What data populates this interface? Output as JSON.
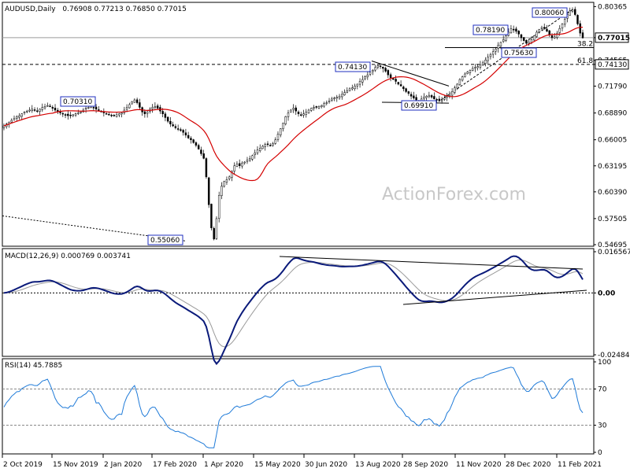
{
  "chart_data": [
    {
      "type": "candlestick",
      "title": "AUDUSD,Daily",
      "ohlc_text": "0.76908 0.77213 0.76850 0.77015",
      "watermark": "ActionForex.com",
      "y_ticks": [
        "0.80365",
        "0.77015",
        "0.74565",
        "0.74130",
        "0.71790",
        "0.68890",
        "0.66005",
        "0.63195",
        "0.60390",
        "0.57505",
        "0.54695"
      ],
      "y_tick_values": [
        0.80365,
        0.77015,
        0.74565,
        0.7413,
        0.7179,
        0.6889,
        0.66005,
        0.63195,
        0.6039,
        0.57505,
        0.54695
      ],
      "ylim": [
        0.54695,
        0.8065
      ],
      "current_price": "0.77015",
      "fib_labels": [
        "38.2",
        "61.8"
      ],
      "annotations": [
        "0.80060",
        "0.78190",
        "0.75630",
        "0.74130",
        "0.70310",
        "0.69910",
        "0.55060"
      ],
      "close": [
        0.675,
        0.677,
        0.679,
        0.681,
        0.683,
        0.685,
        0.686,
        0.688,
        0.69,
        0.691,
        0.692,
        0.693,
        0.692,
        0.691,
        0.693,
        0.695,
        0.696,
        0.697,
        0.696,
        0.694,
        0.692,
        0.69,
        0.689,
        0.688,
        0.687,
        0.686,
        0.686,
        0.687,
        0.688,
        0.689,
        0.69,
        0.692,
        0.694,
        0.695,
        0.696,
        0.695,
        0.693,
        0.692,
        0.69,
        0.689,
        0.688,
        0.687,
        0.686,
        0.686,
        0.687,
        0.688,
        0.689,
        0.692,
        0.695,
        0.698,
        0.701,
        0.703,
        0.7,
        0.695,
        0.69,
        0.688,
        0.69,
        0.693,
        0.695,
        0.696,
        0.694,
        0.691,
        0.688,
        0.684,
        0.68,
        0.677,
        0.675,
        0.673,
        0.672,
        0.67,
        0.668,
        0.665,
        0.662,
        0.66,
        0.657,
        0.654,
        0.65,
        0.645,
        0.64,
        0.62,
        0.59,
        0.565,
        0.553,
        0.575,
        0.6,
        0.61,
        0.615,
        0.617,
        0.62,
        0.626,
        0.632,
        0.634,
        0.632,
        0.635,
        0.636,
        0.638,
        0.64,
        0.643,
        0.646,
        0.649,
        0.651,
        0.653,
        0.655,
        0.655,
        0.654,
        0.656,
        0.66,
        0.666,
        0.672,
        0.678,
        0.685,
        0.689,
        0.692,
        0.694,
        0.691,
        0.688,
        0.687,
        0.688,
        0.69,
        0.692,
        0.694,
        0.695,
        0.695,
        0.696,
        0.697,
        0.699,
        0.7,
        0.702,
        0.704,
        0.705,
        0.706,
        0.707,
        0.709,
        0.711,
        0.713,
        0.715,
        0.716,
        0.718,
        0.72,
        0.723,
        0.725,
        0.728,
        0.73,
        0.733,
        0.735,
        0.738,
        0.74,
        0.739,
        0.737,
        0.734,
        0.73,
        0.727,
        0.725,
        0.723,
        0.72,
        0.718,
        0.715,
        0.712,
        0.71,
        0.707,
        0.705,
        0.703,
        0.702,
        0.704,
        0.706,
        0.707,
        0.708,
        0.706,
        0.704,
        0.703,
        0.702,
        0.703,
        0.705,
        0.707,
        0.709,
        0.712,
        0.716,
        0.72,
        0.725,
        0.728,
        0.731,
        0.733,
        0.735,
        0.737,
        0.738,
        0.739,
        0.741,
        0.743,
        0.746,
        0.749,
        0.752,
        0.755,
        0.758,
        0.762,
        0.765,
        0.768,
        0.772,
        0.776,
        0.78,
        0.779,
        0.777,
        0.774,
        0.77,
        0.767,
        0.764,
        0.765,
        0.768,
        0.772,
        0.776,
        0.779,
        0.781,
        0.78,
        0.777,
        0.773,
        0.77,
        0.771,
        0.775,
        0.78,
        0.785,
        0.79,
        0.795,
        0.799,
        0.8,
        0.795,
        0.785,
        0.775,
        0.77
      ]
    },
    {
      "type": "line",
      "title": "MACD(12,26,9) 0.000769 0.003741",
      "y_ticks": [
        "0.016567",
        "0.00",
        "-0.02484"
      ],
      "y_tick_values": [
        0.016567,
        0,
        -0.02484
      ],
      "ylim": [
        -0.02484,
        0.016567
      ]
    },
    {
      "type": "line",
      "title": "RSI(14) 45.7885",
      "y_ticks": [
        "100",
        "70",
        "30",
        "0"
      ],
      "y_tick_values": [
        100,
        70,
        30,
        0
      ],
      "ylim": [
        0,
        100
      ]
    }
  ],
  "x_axis": {
    "labels": [
      "2 Oct 2019",
      "15 Nov 2019",
      "2 Jan 2020",
      "17 Feb 2020",
      "1 Apr 2020",
      "15 May 2020",
      "30 Jun 2020",
      "13 Aug 2020",
      "28 Sep 2020",
      "11 Nov 2020",
      "28 Dec 2020",
      "11 Feb 2021"
    ]
  }
}
